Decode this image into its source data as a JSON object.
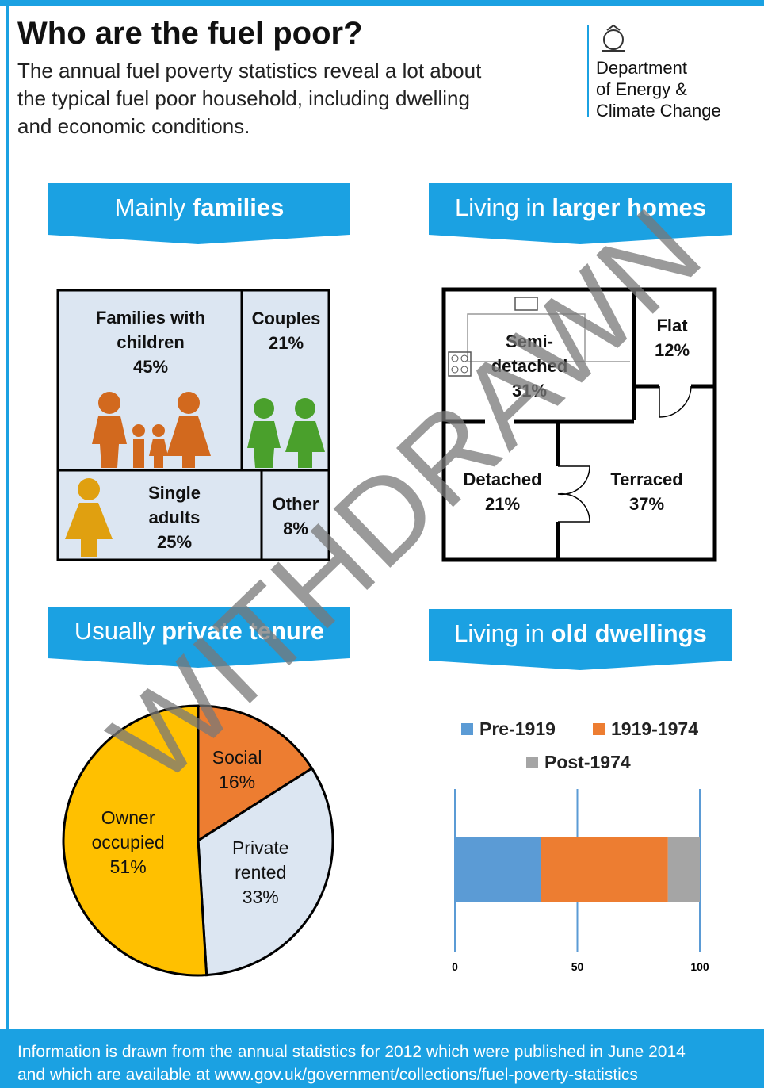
{
  "header": {
    "title": "Who are the fuel poor?",
    "subtitle": [
      "The annual fuel poverty statistics reveal a lot about",
      "the typical fuel poor household, including dwelling",
      "and economic conditions."
    ],
    "logo": [
      "Department",
      "of Energy &",
      "Climate Change"
    ]
  },
  "headings": [
    {
      "light": "Mainly",
      "bold": "families"
    },
    {
      "light": "Living in",
      "bold": "larger homes"
    },
    {
      "light": "Usually",
      "bold": "private tenure"
    },
    {
      "light": "Living in",
      "bold": "old dwellings"
    }
  ],
  "households": [
    {
      "label": "Families with children",
      "value": "45%"
    },
    {
      "label": "Couples",
      "value": "21%"
    },
    {
      "label": "Single adults",
      "value": "25%"
    },
    {
      "label": "Other",
      "value": "8%"
    }
  ],
  "dwellings": [
    {
      "label": "Semi-detached",
      "value": "31%"
    },
    {
      "label": "Flat",
      "value": "12%"
    },
    {
      "label": "Detached",
      "value": "21%"
    },
    {
      "label": "Terraced",
      "value": "37%"
    }
  ],
  "chart_data": [
    {
      "type": "pie",
      "categories": [
        "Social",
        "Private rented",
        "Owner occupied"
      ],
      "values": [
        16,
        33,
        51
      ],
      "value_labels": [
        "16%",
        "33%",
        "51%"
      ],
      "colors": [
        "#ed7d31",
        "#dce6f2",
        "#ffc000"
      ]
    },
    {
      "type": "stacked_bar",
      "series": [
        {
          "name": "Pre-1919",
          "color": "#5b9bd5",
          "values": [
            35
          ]
        },
        {
          "name": "1919-1974",
          "color": "#ed7d31",
          "values": [
            52
          ]
        },
        {
          "name": "Post-1974",
          "color": "#a5a5a5",
          "values": [
            13
          ]
        }
      ],
      "xlim": [
        0,
        100
      ],
      "xticks": [
        0,
        50,
        100
      ],
      "grid": true
    }
  ],
  "watermark": "WITHDRAWN",
  "footer": [
    "Information is drawn from the annual statistics for 2012 which were published in June 2014",
    "and which are available at www.gov.uk/government/collections/fuel-poverty-statistics"
  ]
}
